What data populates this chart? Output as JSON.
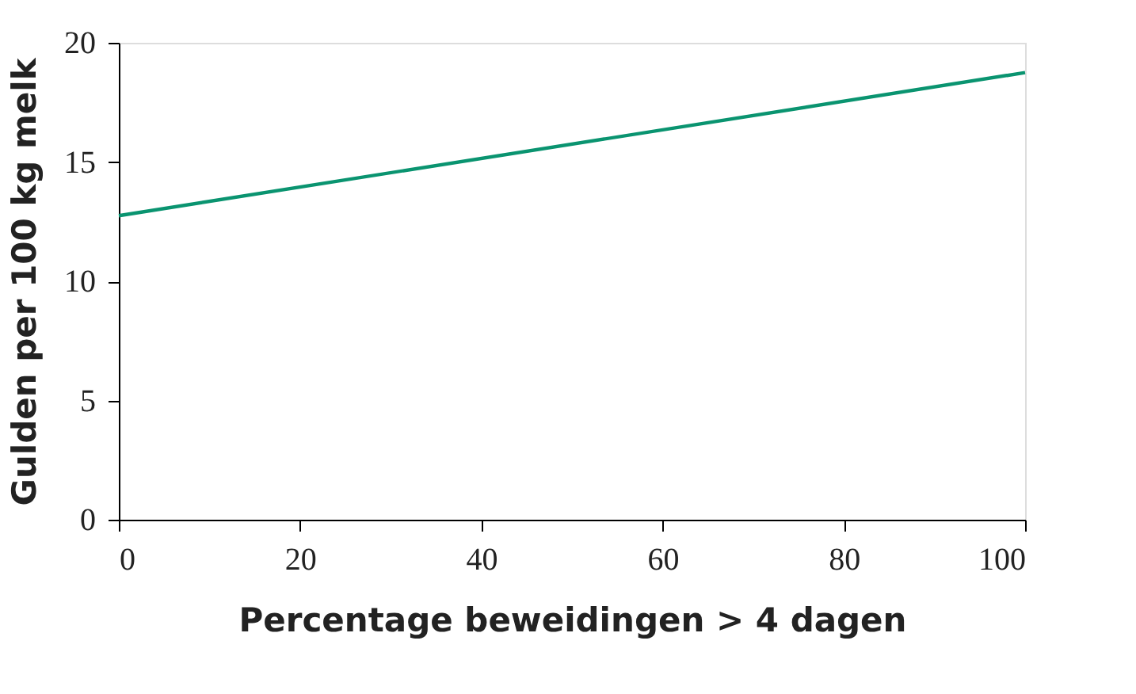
{
  "chart_data": {
    "type": "line",
    "xlabel": "Percentage beweidingen > 4 dagen",
    "ylabel": "Gulden per 100 kg melk",
    "x": [
      0,
      100
    ],
    "series": [
      {
        "color": "#0a9470",
        "values": [
          12.75,
          18.75
        ]
      }
    ],
    "xlim": [
      0,
      100
    ],
    "xticks": [
      0,
      20,
      40,
      60,
      80,
      100
    ],
    "ylim": [
      0,
      20
    ],
    "yticks": [
      0,
      5,
      10,
      15,
      20
    ],
    "grid": false,
    "legend": false,
    "marker": "none",
    "line_style": "solid"
  }
}
